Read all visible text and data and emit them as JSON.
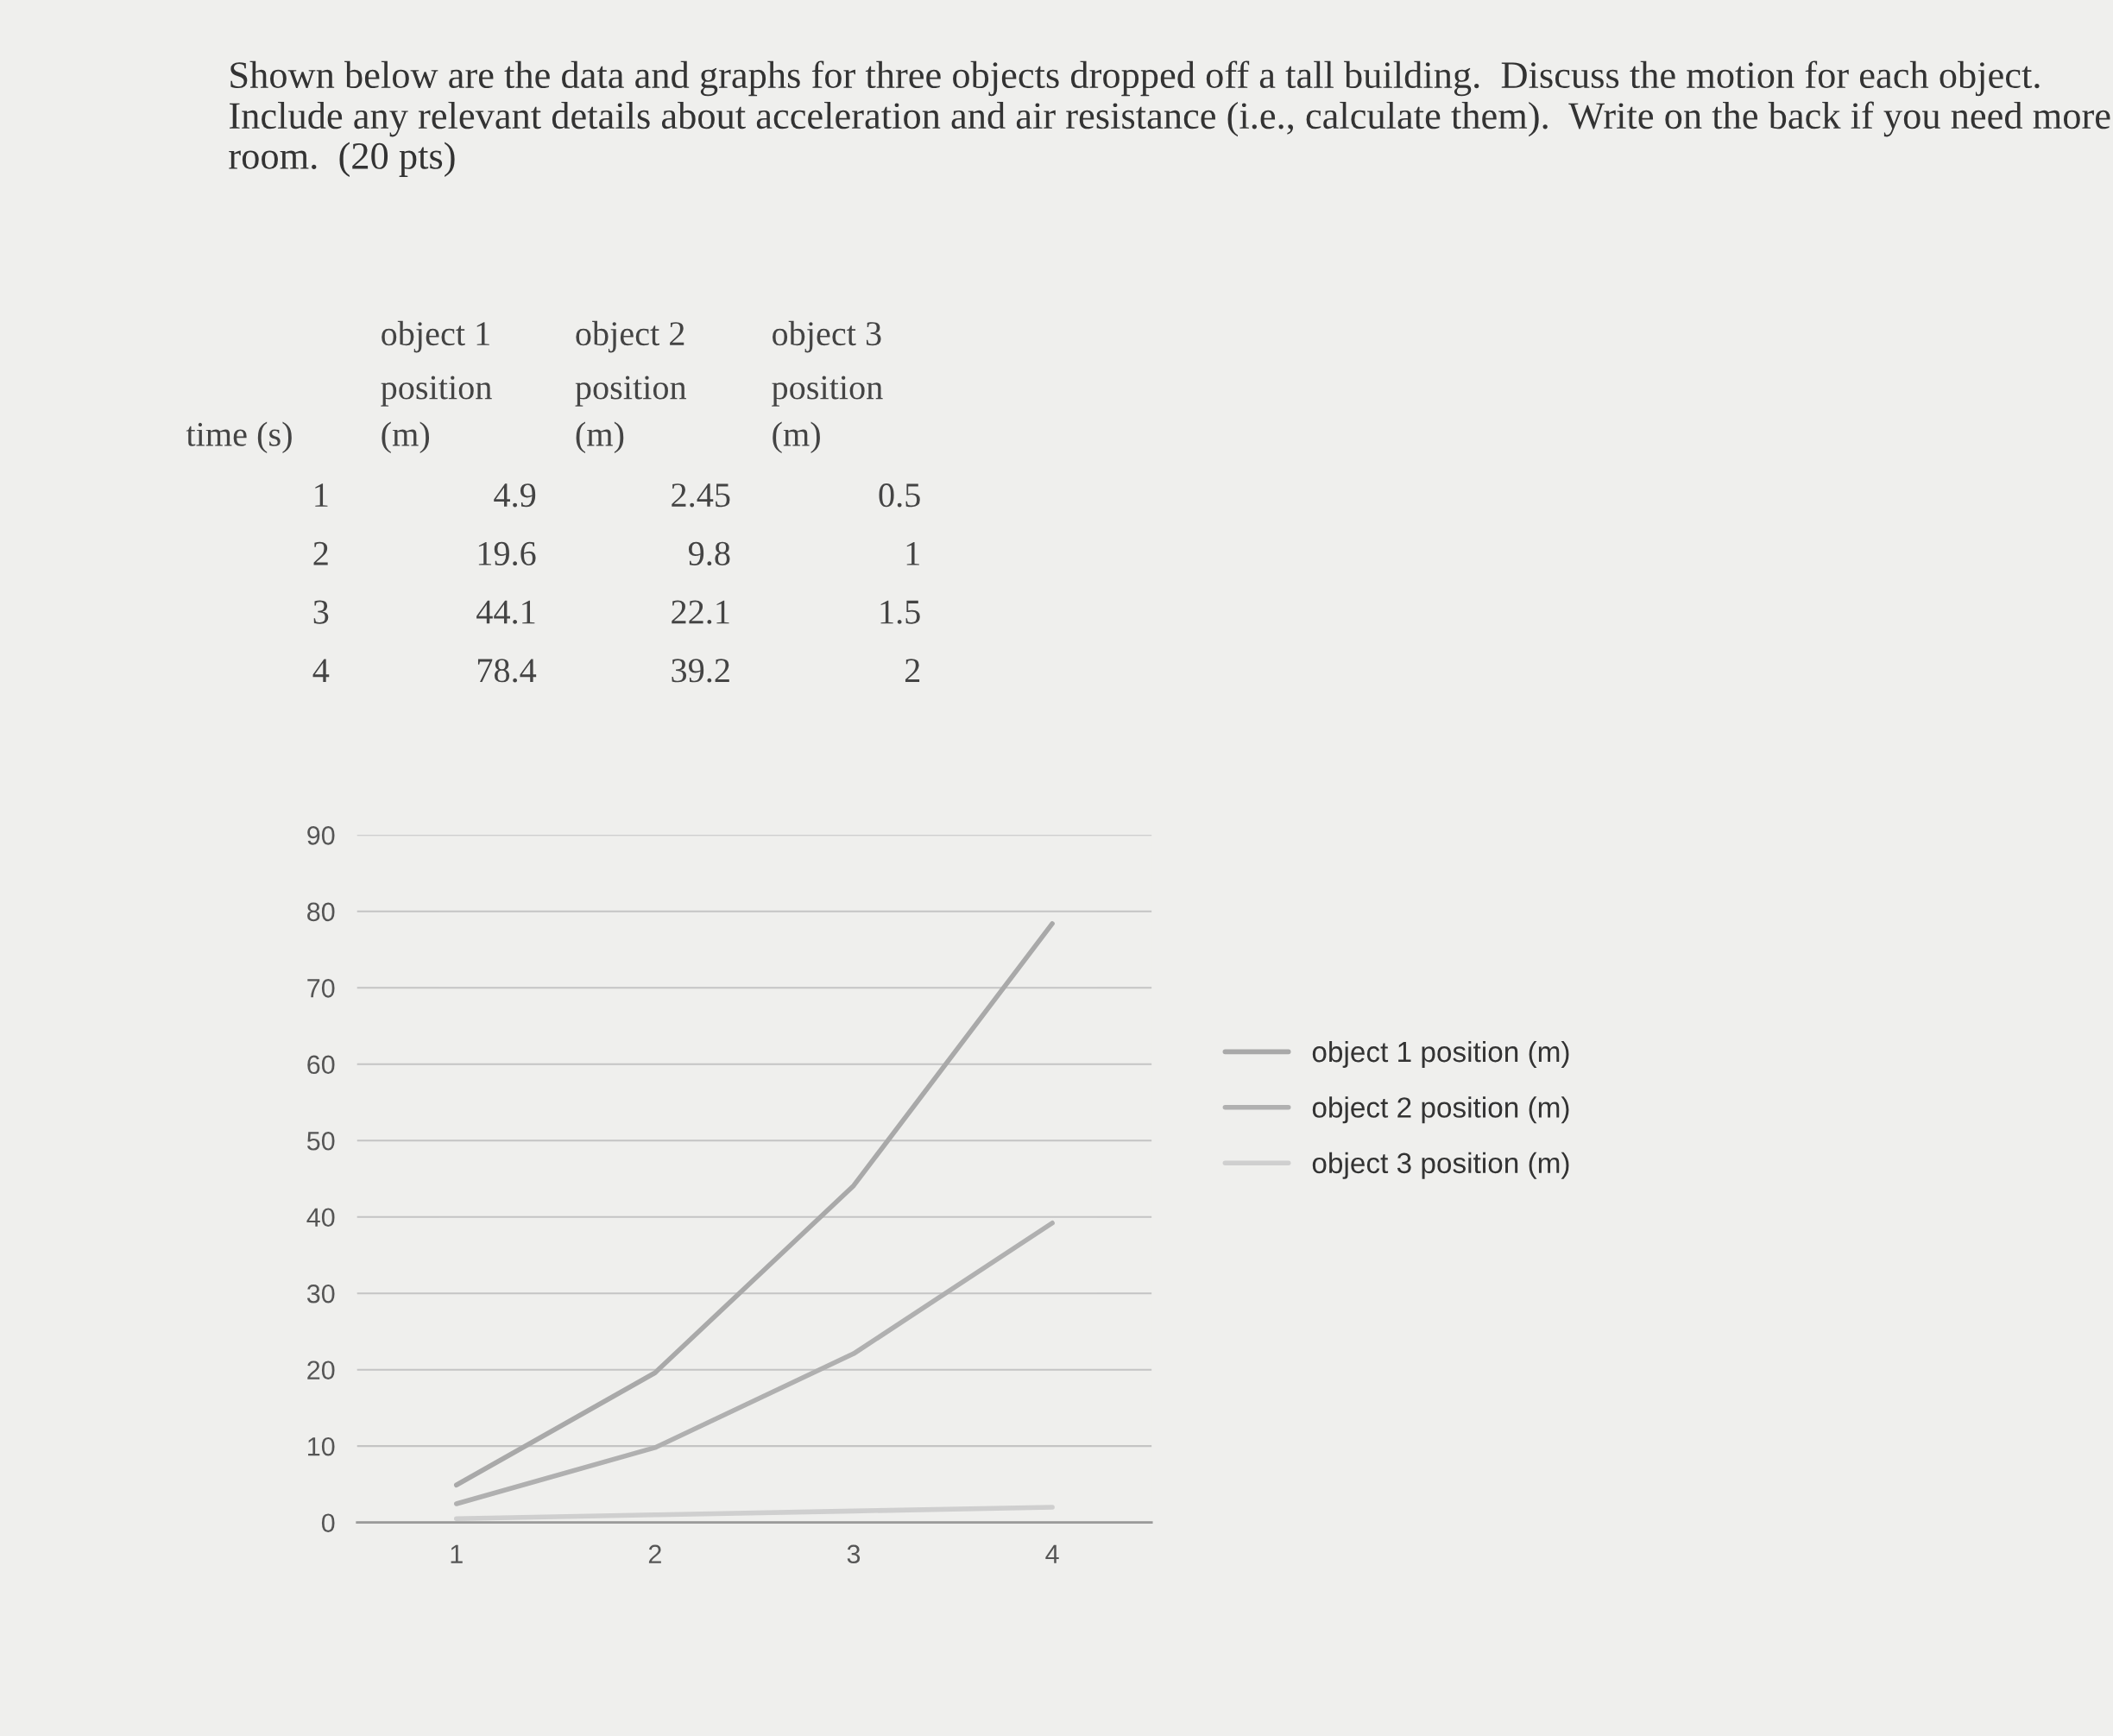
{
  "chart_data": {
    "type": "line",
    "title": "Shown below are the data and graphs for three objects dropped off a tall building.  Discuss the motion for each object.  Include any relevant details about acceleration and air resistance (i.e., calculate them).  Write on the back if you need more room.  (20 pts)",
    "annotations": [
      "time (s)",
      "1",
      "4.9",
      "2.45",
      "0.5",
      "2",
      "19.6",
      "9.8",
      "1",
      "3",
      "44.1",
      "22.1",
      "1.5",
      "4",
      "78.4",
      "39.2",
      "2"
    ],
    "categories": [
      "1",
      "2",
      "3",
      "4"
    ],
    "series": [
      {
        "name": "object 1 position (m)",
        "color": "#a9a9a9",
        "values": [
          4.9,
          19.6,
          44.1,
          78.4
        ]
      },
      {
        "name": "object 2 position (m)",
        "color": "#b0b0b0",
        "values": [
          2.45,
          9.8,
          22.1,
          39.2
        ]
      },
      {
        "name": "object 3 position (m)",
        "color": "#cfcfcf",
        "values": [
          0.5,
          1,
          1.5,
          2
        ]
      }
    ],
    "ylim": [
      0,
      90
    ],
    "yticks": [
      0,
      10,
      20,
      30,
      40,
      50,
      60,
      70,
      80,
      90
    ],
    "grid": "y",
    "legend": "right"
  }
}
